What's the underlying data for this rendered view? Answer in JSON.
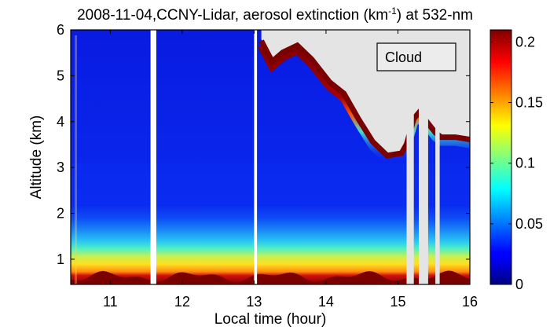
{
  "chart_data": {
    "type": "heatmap",
    "title": {
      "main": "2008-11-04,CCNY-Lidar, aerosol extinction (km",
      "sup": "-1",
      "tail": ") at 532-nm"
    },
    "xlabel": "Local time (hour)",
    "ylabel": "Altitude (km)",
    "xlim": [
      10.45,
      16.0
    ],
    "ylim": [
      0.45,
      6.0
    ],
    "x_ticks": [
      11,
      12,
      13,
      14,
      15,
      16
    ],
    "y_ticks": [
      1,
      2,
      3,
      4,
      5,
      6
    ],
    "colorbar": {
      "range": [
        0,
        0.21
      ],
      "ticks": [
        0,
        0.05,
        0.1,
        0.15,
        0.2
      ],
      "colormap": "jet"
    },
    "gaps_hours": [
      {
        "start": 11.56,
        "end": 11.64
      },
      {
        "start": 13.0,
        "end": 13.04
      },
      {
        "start": 15.12,
        "end": 15.22
      },
      {
        "start": 15.29,
        "end": 15.42
      },
      {
        "start": 15.52,
        "end": 15.58
      }
    ],
    "cloud_base_km": [
      [
        13.1,
        6.0
      ],
      [
        13.25,
        5.55
      ],
      [
        13.4,
        5.75
      ],
      [
        13.6,
        5.9
      ],
      [
        13.8,
        5.6
      ],
      [
        14.05,
        5.1
      ],
      [
        14.25,
        4.85
      ],
      [
        14.45,
        4.3
      ],
      [
        14.65,
        3.8
      ],
      [
        14.85,
        3.5
      ],
      [
        15.05,
        3.55
      ],
      [
        15.12,
        3.75
      ],
      [
        15.22,
        4.3
      ],
      [
        15.3,
        4.45
      ],
      [
        15.42,
        4.2
      ],
      [
        15.52,
        4.0
      ],
      [
        15.6,
        3.9
      ],
      [
        15.8,
        3.9
      ],
      [
        16.0,
        3.85
      ]
    ],
    "annotation": "Cloud",
    "colors": {
      "background_no_data": "#e4e4e4",
      "gap": "#ffffff"
    }
  }
}
